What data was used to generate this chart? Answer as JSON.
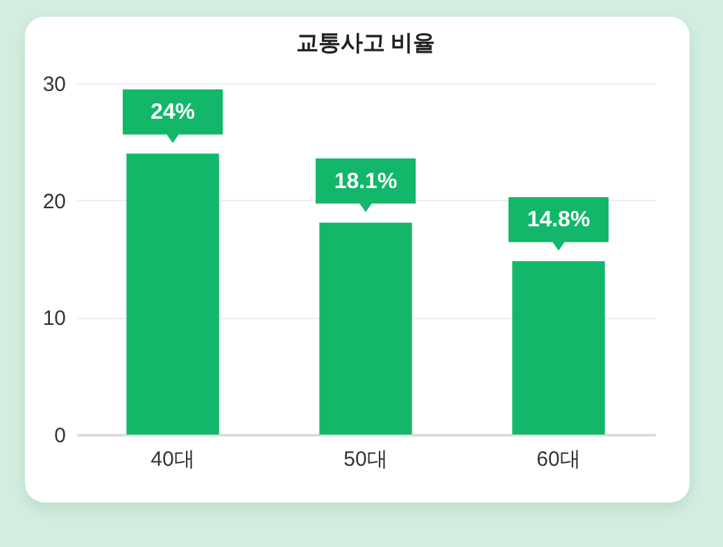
{
  "chart_data": {
    "type": "bar",
    "title": "교통사고 비율",
    "categories": [
      "40대",
      "50대",
      "60대"
    ],
    "values": [
      24,
      18.1,
      14.8
    ],
    "color": "#12b76a",
    "ylim": [
      0,
      30
    ],
    "yticks": [
      0,
      10,
      20,
      30
    ],
    "grid": "y",
    "data_labels": true,
    "value_labels": [
      "24%",
      "18.1%",
      "14.8%"
    ]
  }
}
